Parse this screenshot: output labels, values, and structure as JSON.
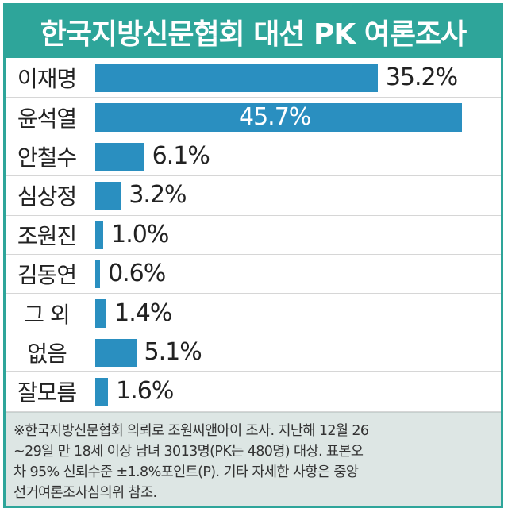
{
  "chart_data": {
    "type": "bar",
    "orientation": "horizontal",
    "title": "한국지방신문협회 대선 PK 여론조사",
    "categories": [
      "이재명",
      "윤석열",
      "안철수",
      "심상정",
      "조원진",
      "김동연",
      "그 외",
      "없음",
      "잘모름"
    ],
    "values": [
      35.2,
      45.7,
      6.1,
      3.2,
      1.0,
      0.6,
      1.4,
      5.1,
      1.6
    ],
    "value_labels": [
      "35.2%",
      "45.7%",
      "6.1%",
      "3.2%",
      "1.0%",
      "0.6%",
      "1.4%",
      "5.1%",
      "1.6%"
    ],
    "unit": "%",
    "xlim": [
      0,
      45.7
    ],
    "grid": false,
    "legend": "none",
    "bar_color": "#2a8fc0"
  },
  "footnote": "※한국지방신문협회 의뢰로 조원씨앤아이 조사. 지난해 12월 26\n~29일 만 18세 이상 남녀 3013명(PK는 480명) 대상. 표본오\n차 95% 신뢰수준 ±1.8%포인트(P). 기타 자세한 사항은 중앙\n선거여론조사심의위 참조.",
  "colors": {
    "accent": "#2ea59a",
    "footnote_bg": "#dde6e4"
  }
}
